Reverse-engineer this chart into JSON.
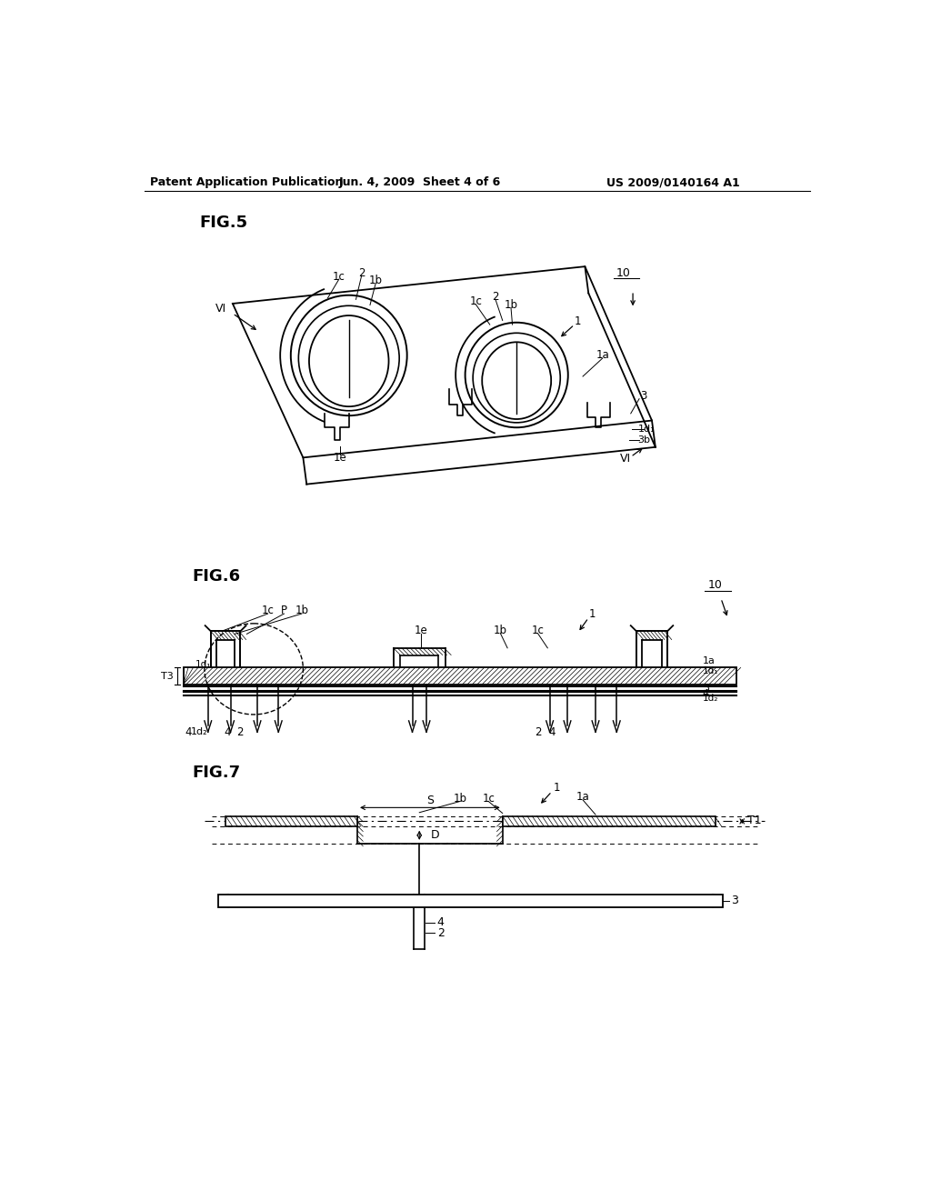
{
  "background_color": "#ffffff",
  "header_left": "Patent Application Publication",
  "header_center": "Jun. 4, 2009  Sheet 4 of 6",
  "header_right": "US 2009/0140164 A1"
}
